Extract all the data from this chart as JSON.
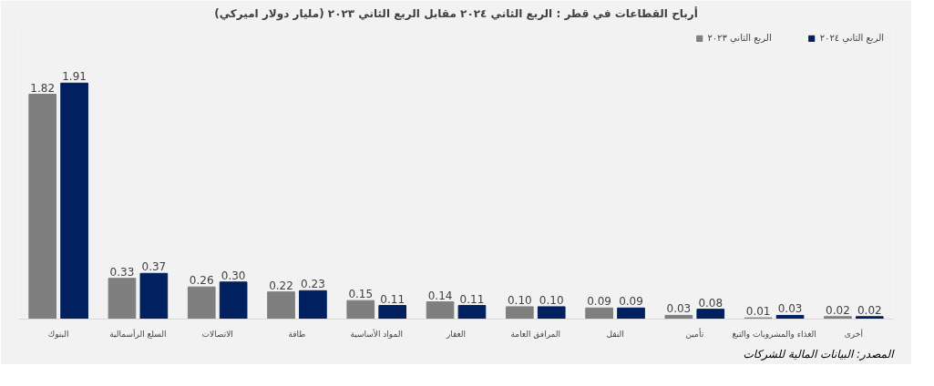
{
  "chart_data": {
    "type": "bar",
    "title": "أرباح القطاعات في قطر : الربع الثاني ٢٠٢٤ مقابل الربع الثاني ٢٠٢٣ (مليار دولار اميركي)",
    "categories": [
      "البنوك",
      "السلع الرأسمالية",
      "الاتصالات",
      "طاقة",
      "المواد الأساسية",
      "العقار",
      "المرافق العامة",
      "النقل",
      "تأمين",
      "الغذاء والمشروبات والتبغ",
      "أخرى"
    ],
    "series": [
      {
        "name": "الربع الثاني ٢٠٢٣",
        "color": "#7f7f7f",
        "values": [
          1.82,
          0.33,
          0.26,
          0.22,
          0.15,
          0.14,
          0.1,
          0.09,
          0.03,
          0.01,
          0.02
        ],
        "value_labels": [
          "1.82",
          "0.33",
          "0.26",
          "0.22",
          "0.15",
          "0.14",
          "0.10",
          "0.09",
          "0.03",
          "0.01",
          "0.02"
        ]
      },
      {
        "name": "الربع الثاني ٢٠٢٤",
        "color": "#002060",
        "values": [
          1.91,
          0.37,
          0.3,
          0.23,
          0.11,
          0.11,
          0.1,
          0.09,
          0.08,
          0.03,
          0.02
        ],
        "value_labels": [
          "1.91",
          "0.37",
          "0.30",
          "0.23",
          "0.11",
          "0.11",
          "0.10",
          "0.09",
          "0.08",
          "0.03",
          "0.02"
        ]
      }
    ],
    "legend": "top right",
    "grid": false,
    "tick_labels": "x",
    "annotations": [
      "المصدر: البيانات المالية للشركات"
    ]
  }
}
